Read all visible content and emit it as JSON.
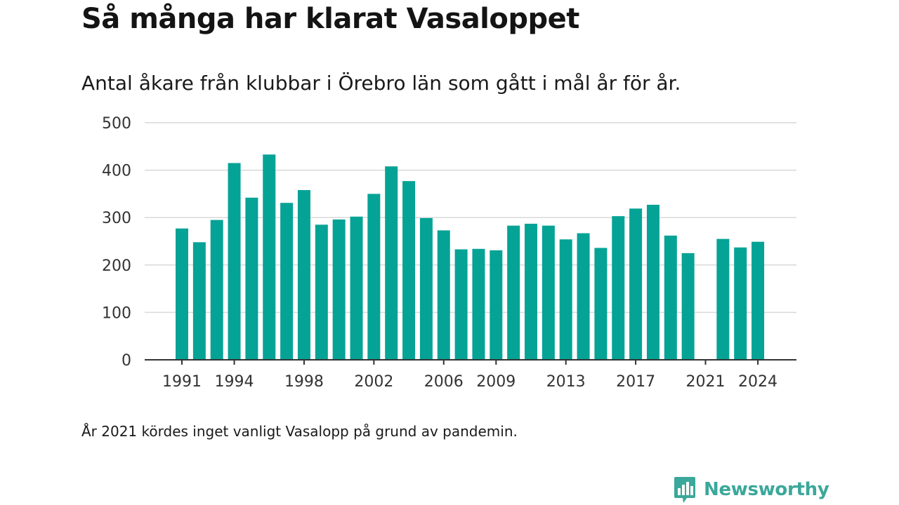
{
  "title": "Så många har klarat Vasaloppet",
  "subtitle": "Antal åkare från klubbar i Örebro län som gått i mål år för år.",
  "note": "År 2021 kördes inget vanligt Vasalopp på grund av pandemin.",
  "brand": {
    "name": "Newsworthy",
    "logo_icon": "bar-chart-speech-bubble-icon"
  },
  "colors": {
    "bar": "#05a396",
    "grid": "#d9d9d9",
    "axis": "#333333",
    "brand": "#3aa89a"
  },
  "chart_data": {
    "type": "bar",
    "title": "Så många har klarat Vasaloppet",
    "subtitle": "Antal åkare från klubbar i Örebro län som gått i mål år för år.",
    "xlabel": "",
    "ylabel": "",
    "ylim": [
      0,
      500
    ],
    "yticks": [
      0,
      100,
      200,
      300,
      400,
      500
    ],
    "xticks": [
      1991,
      1994,
      1998,
      2002,
      2006,
      2009,
      2013,
      2017,
      2021,
      2024
    ],
    "grid": true,
    "categories": [
      1991,
      1992,
      1993,
      1994,
      1995,
      1996,
      1997,
      1998,
      1999,
      2000,
      2001,
      2002,
      2003,
      2004,
      2005,
      2006,
      2007,
      2008,
      2009,
      2010,
      2011,
      2012,
      2013,
      2014,
      2015,
      2016,
      2017,
      2018,
      2019,
      2020,
      2021,
      2022,
      2023,
      2024
    ],
    "values": [
      277,
      248,
      295,
      415,
      342,
      433,
      331,
      358,
      285,
      296,
      302,
      350,
      408,
      377,
      299,
      273,
      233,
      234,
      231,
      283,
      287,
      283,
      254,
      267,
      236,
      303,
      319,
      327,
      262,
      225,
      null,
      255,
      237,
      249
    ]
  }
}
